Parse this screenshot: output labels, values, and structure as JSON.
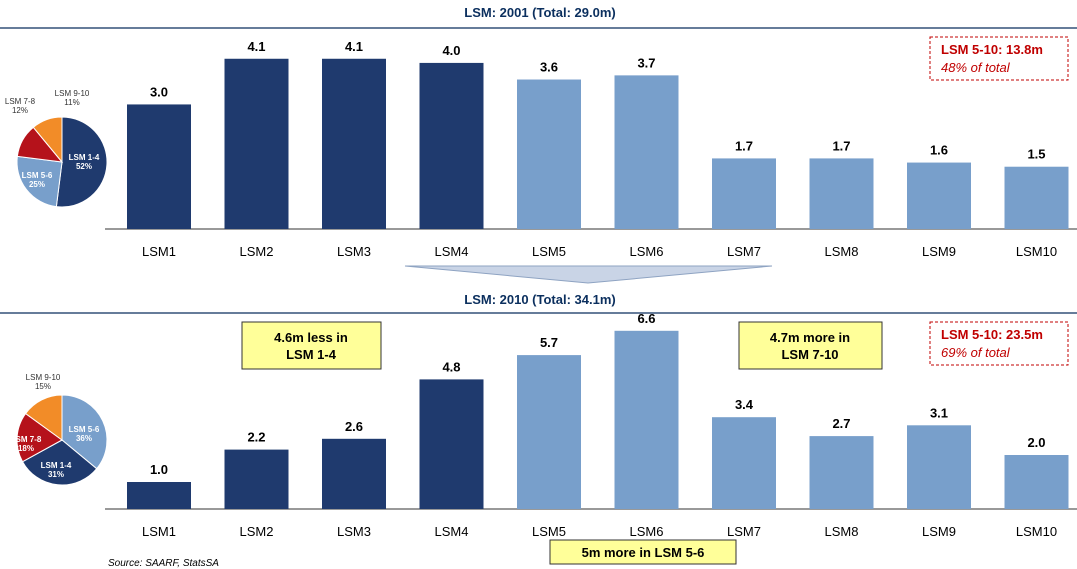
{
  "colors": {
    "dark": "#1f3a6e",
    "light": "#789fcb",
    "red": "#b5121b",
    "orange": "#f28c28",
    "header": "#0b2f5e",
    "note_bg": "#ffff99",
    "callout_red": "#c00000"
  },
  "source": "Source:  SAARF, StatsSA",
  "chart_data": [
    {
      "type": "bar",
      "title": "LSM: 2001 (Total: 29.0m)",
      "categories": [
        "LSM1",
        "LSM2",
        "LSM3",
        "LSM4",
        "LSM5",
        "LSM6",
        "LSM7",
        "LSM8",
        "LSM9",
        "LSM10"
      ],
      "values": [
        3.0,
        4.1,
        4.1,
        4.0,
        3.6,
        3.7,
        1.7,
        1.7,
        1.6,
        1.5
      ],
      "value_labels": [
        "3.0",
        "4.1",
        "4.1",
        "4.0",
        "3.6",
        "3.7",
        "1.7",
        "1.7",
        "1.6",
        "1.5"
      ],
      "bar_colors": [
        "dark",
        "dark",
        "dark",
        "dark",
        "light",
        "light",
        "light",
        "light",
        "light",
        "light"
      ],
      "ylim": [
        0,
        4.6
      ],
      "grid": false,
      "callout": {
        "title": "LSM 5-10: 13.8m",
        "subtitle": "48% of total"
      },
      "pie": {
        "slices": [
          {
            "name": "LSM 1-4",
            "value": 52,
            "label": "52%",
            "color": "dark",
            "inside": true
          },
          {
            "name": "LSM 5-6",
            "value": 25,
            "label": "25%",
            "color": "light",
            "inside": true
          },
          {
            "name": "LSM 7-8",
            "value": 12,
            "label": "12%",
            "color": "red",
            "inside": false
          },
          {
            "name": "LSM 9-10",
            "value": 11,
            "label": "11%",
            "color": "orange",
            "inside": false
          }
        ]
      }
    },
    {
      "type": "bar",
      "title": "LSM: 2010 (Total: 34.1m)",
      "categories": [
        "LSM1",
        "LSM2",
        "LSM3",
        "LSM4",
        "LSM5",
        "LSM6",
        "LSM7",
        "LSM8",
        "LSM9",
        "LSM10"
      ],
      "values": [
        1.0,
        2.2,
        2.6,
        4.8,
        5.7,
        6.6,
        3.4,
        2.7,
        3.1,
        2.0
      ],
      "value_labels": [
        "1.0",
        "2.2",
        "2.6",
        "4.8",
        "5.7",
        "6.6",
        "3.4",
        "2.7",
        "3.1",
        "2.0"
      ],
      "bar_colors": [
        "dark",
        "dark",
        "dark",
        "dark",
        "light",
        "light",
        "light",
        "light",
        "light",
        "light"
      ],
      "ylim": [
        0,
        7.0
      ],
      "grid": false,
      "callout": {
        "title": "LSM 5-10: 23.5m",
        "subtitle": "69% of total"
      },
      "notes": [
        {
          "lines": [
            "4.6m less in",
            "LSM 1-4"
          ]
        },
        {
          "lines": [
            "4.7m more in",
            "LSM 7-10"
          ]
        },
        {
          "lines": [
            "5m more in LSM 5-6"
          ]
        }
      ],
      "pie": {
        "slices": [
          {
            "name": "LSM 5-6",
            "value": 36,
            "label": "36%",
            "color": "light",
            "inside": true
          },
          {
            "name": "LSM 1-4",
            "value": 31,
            "label": "31%",
            "color": "dark",
            "inside": true
          },
          {
            "name": "LSM 7-8",
            "value": 18,
            "label": "18%",
            "color": "red",
            "inside": true
          },
          {
            "name": "LSM 9-10",
            "value": 15,
            "label": "15%",
            "color": "orange",
            "inside": false
          }
        ]
      }
    }
  ]
}
